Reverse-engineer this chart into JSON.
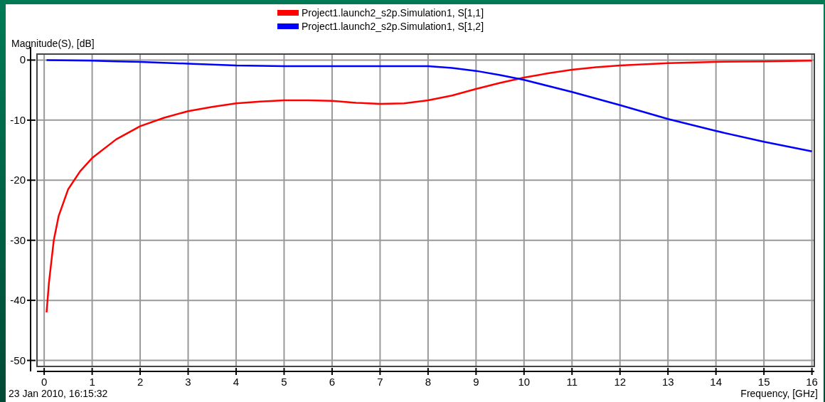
{
  "chart_data": {
    "type": "line",
    "xlabel": "Frequency, [GHz]",
    "ylabel": "Magnitude(S), [dB]",
    "annotations": [
      "23 Jan 2010, 16:15:32"
    ],
    "xlim": [
      -0.15,
      16.05
    ],
    "ylim": [
      -51,
      1
    ],
    "xticks": [
      0,
      1,
      2,
      3,
      4,
      5,
      6,
      7,
      8,
      9,
      10,
      11,
      12,
      13,
      14,
      15,
      16
    ],
    "yticks": [
      -50,
      -40,
      -30,
      -20,
      -10,
      0
    ],
    "grid": true,
    "legend": "top",
    "marker": "none",
    "line_style": "solid",
    "series": [
      {
        "name": "Project1.launch2_s2p.Simulation1, S[1,1]",
        "color": "#ff0000",
        "x": [
          0.05,
          0.1,
          0.2,
          0.3,
          0.5,
          0.75,
          1,
          1.5,
          2,
          2.5,
          3,
          3.5,
          4,
          4.5,
          5,
          5.5,
          6,
          6.5,
          7,
          7.5,
          8,
          8.5,
          9,
          9.5,
          10,
          10.5,
          11,
          11.5,
          12,
          13,
          14,
          15,
          16
        ],
        "values": [
          -42,
          -37,
          -30,
          -26,
          -21.5,
          -18.5,
          -16.3,
          -13.2,
          -11,
          -9.6,
          -8.5,
          -7.8,
          -7.2,
          -6.9,
          -6.7,
          -6.7,
          -6.8,
          -7.1,
          -7.3,
          -7.2,
          -6.7,
          -5.9,
          -4.8,
          -3.8,
          -2.9,
          -2.2,
          -1.6,
          -1.2,
          -0.9,
          -0.5,
          -0.3,
          -0.2,
          -0.1
        ]
      },
      {
        "name": "Project1.launch2_s2p.Simulation1, S[1,2]",
        "color": "#0000ff",
        "x": [
          0.05,
          1,
          1.5,
          2,
          3,
          4,
          5,
          6,
          7,
          8,
          8.5,
          9,
          9.5,
          10,
          11,
          12,
          13,
          14,
          15,
          16
        ],
        "values": [
          0,
          -0.1,
          -0.2,
          -0.3,
          -0.6,
          -0.9,
          -1,
          -1,
          -1,
          -1,
          -1.3,
          -1.8,
          -2.5,
          -3.3,
          -5.3,
          -7.5,
          -9.8,
          -11.8,
          -13.6,
          -15.2
        ]
      }
    ]
  }
}
